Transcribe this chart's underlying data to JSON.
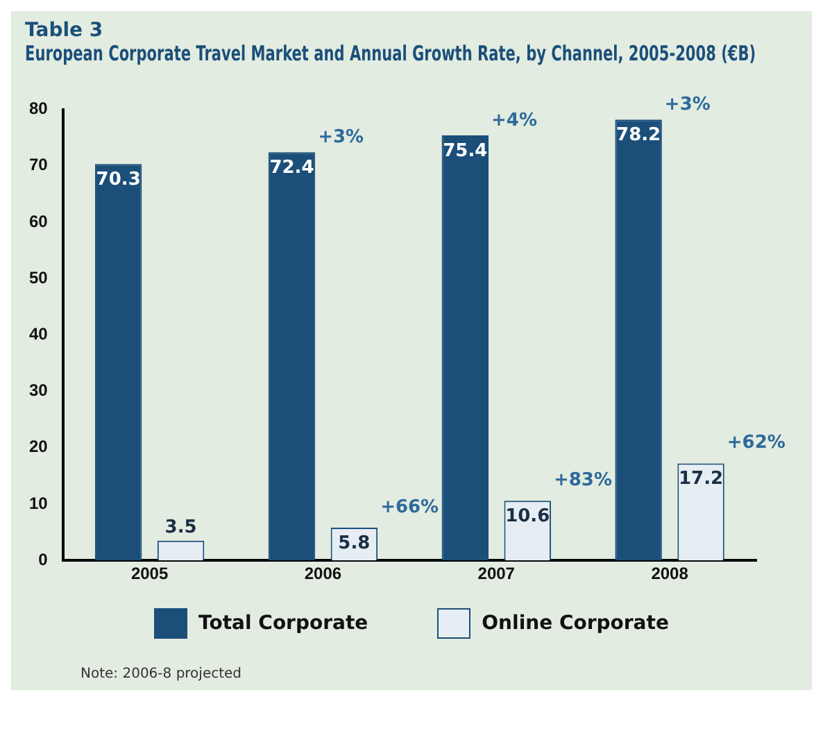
{
  "chart_data": {
    "type": "bar",
    "title": "Table 3",
    "subtitle": "European Corporate Travel Market and Annual Growth Rate, by Channel, 2005-2008 (€B)",
    "categories": [
      "2005",
      "2006",
      "2007",
      "2008"
    ],
    "series": [
      {
        "name": "Total Corporate",
        "color": "#1b4f7a",
        "values": [
          70.3,
          72.4,
          75.4,
          78.2
        ]
      },
      {
        "name": "Online Corporate",
        "color": "#e6edf3",
        "values": [
          3.5,
          5.8,
          10.6,
          17.2
        ]
      }
    ],
    "ylim": [
      0,
      80
    ],
    "yticks": [
      0,
      10,
      20,
      30,
      40,
      50,
      60,
      70,
      80
    ],
    "grid": false,
    "legend": "bottom",
    "data_labels": true,
    "annotations": [
      "+3%",
      "+4%",
      "+3%",
      "+66%",
      "+83%",
      "+62%",
      "Note: 2006-8 projected"
    ]
  }
}
